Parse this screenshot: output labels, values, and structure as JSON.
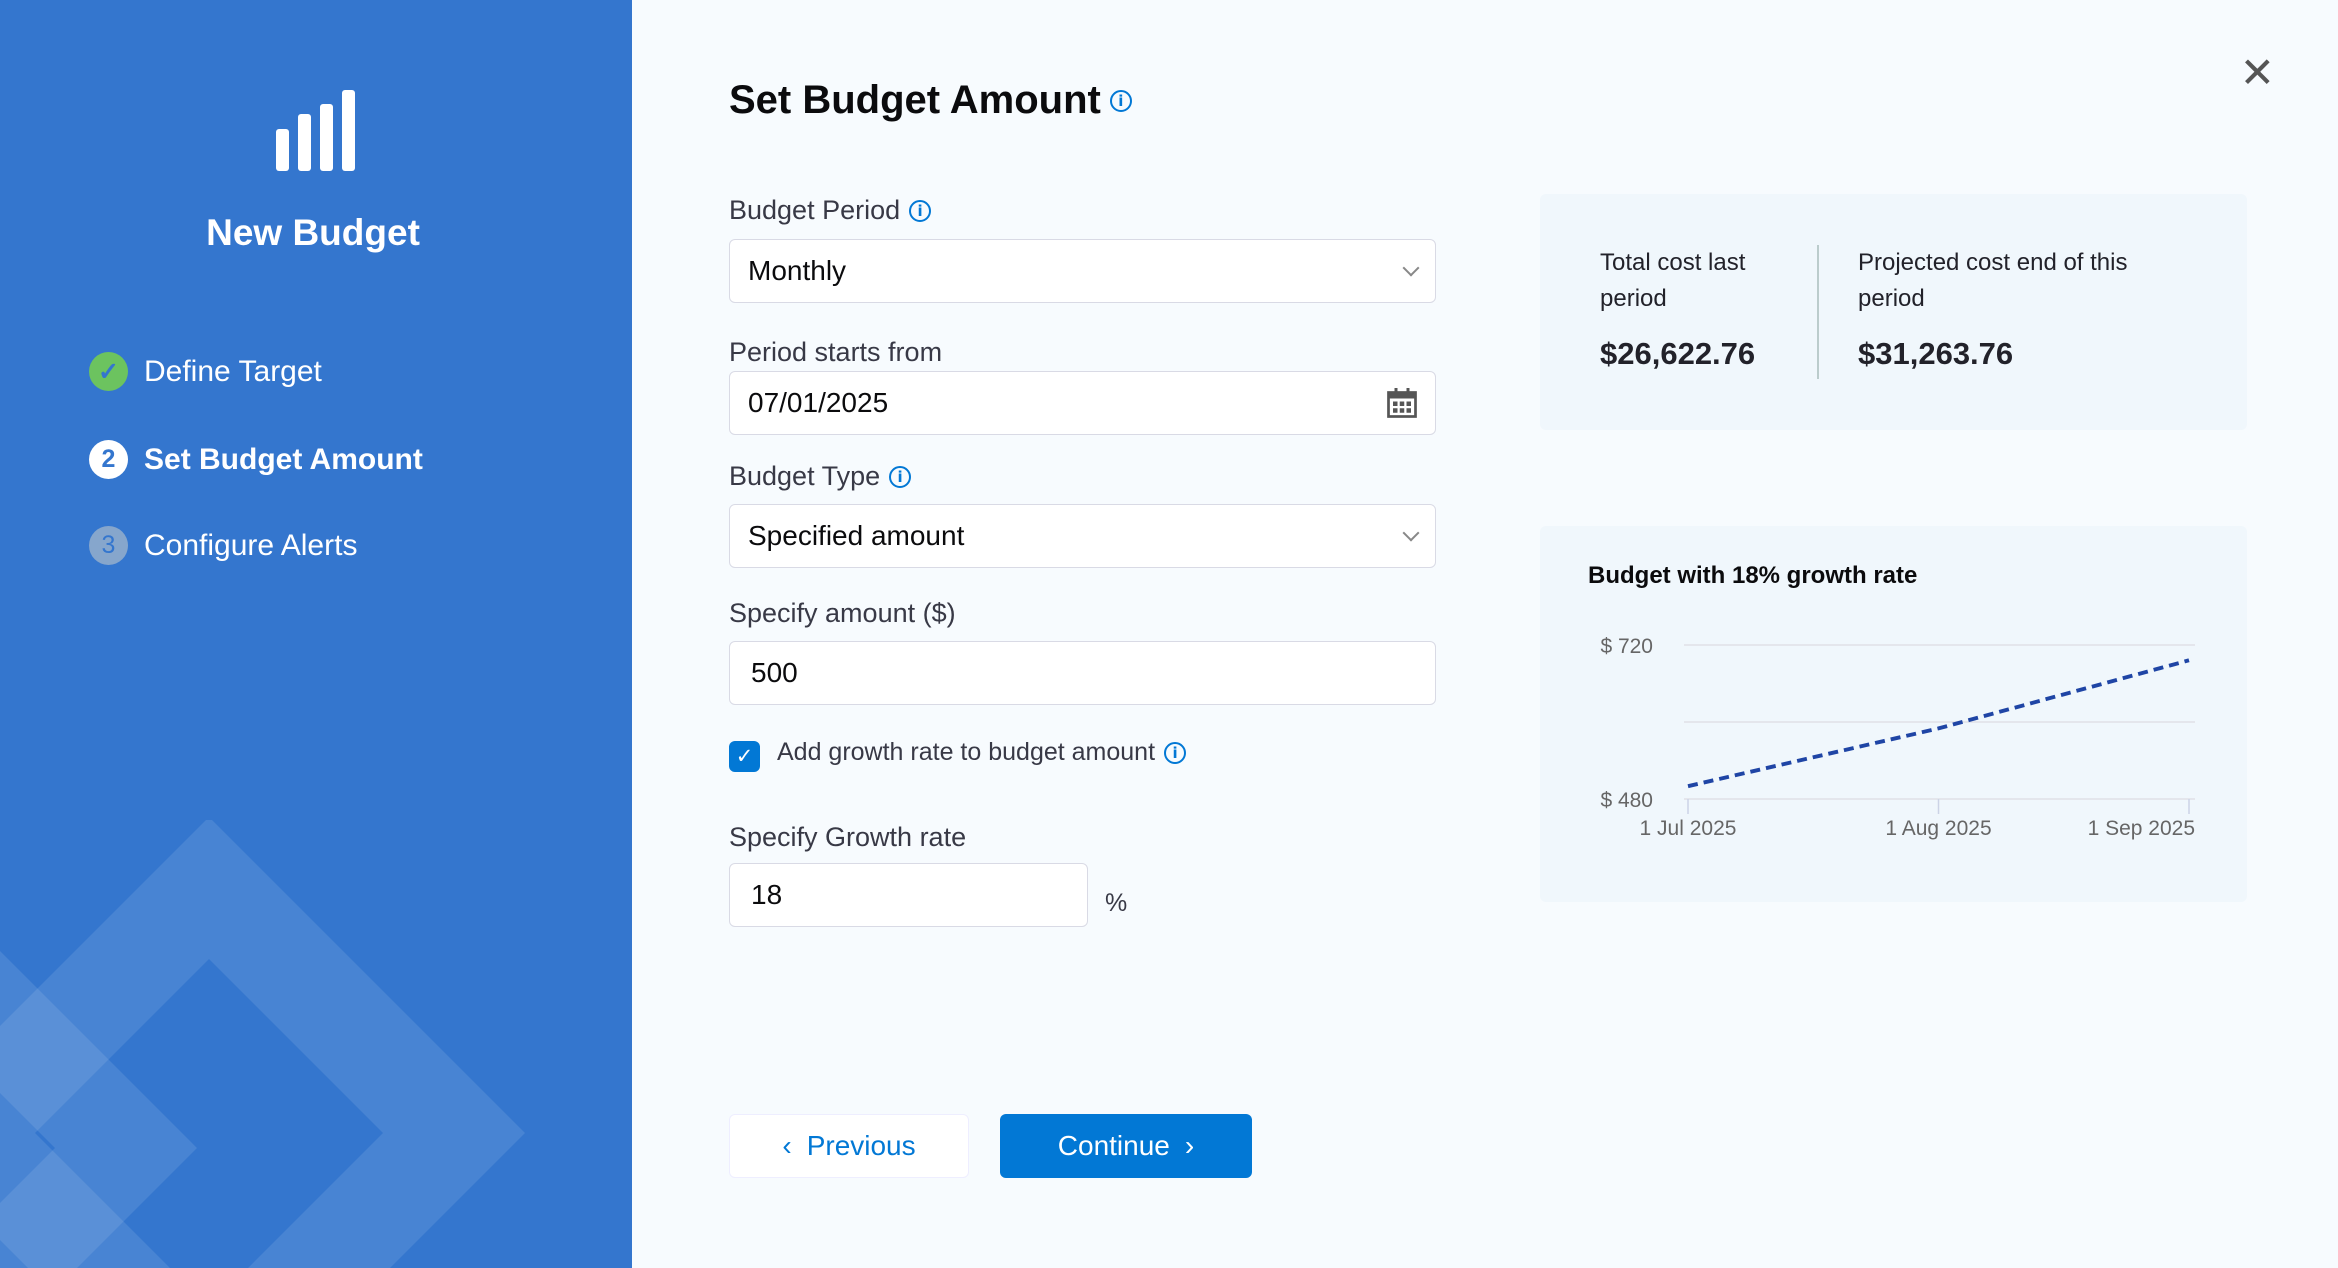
{
  "sidebar": {
    "title": "New Budget",
    "logo_icon": "bar-chart-icon",
    "steps": [
      {
        "label": "Define Target",
        "state": "completed",
        "marker": "✓"
      },
      {
        "label": "Set Budget Amount",
        "state": "active",
        "marker": "2"
      },
      {
        "label": "Configure Alerts",
        "state": "pending",
        "marker": "3"
      }
    ]
  },
  "main": {
    "title": "Set Budget Amount",
    "budget_period": {
      "label": "Budget Period",
      "value": "Monthly"
    },
    "period_start": {
      "label": "Period starts from",
      "value": "07/01/2025"
    },
    "budget_type": {
      "label": "Budget Type",
      "value": "Specified amount"
    },
    "amount": {
      "label": "Specify amount ($)",
      "value": "500"
    },
    "growth_checkbox": {
      "label": "Add growth rate to budget amount",
      "checked": true
    },
    "growth_rate": {
      "label": "Specify Growth rate",
      "value": "18",
      "unit": "%"
    },
    "previous_label": "Previous",
    "continue_label": "Continue"
  },
  "summary": {
    "last_label": "Total cost last period",
    "last_value": "$26,622.76",
    "projected_label": "Projected cost end of this period",
    "projected_value": "$31,263.76"
  },
  "colors": {
    "sidebar": "#3476ce",
    "accent": "#0278d5",
    "line": "#1f45a5",
    "success": "#6cc35f"
  },
  "chart_data": {
    "type": "line",
    "title": "Budget with 18% growth rate",
    "x": [
      "1 Jul 2025",
      "1 Aug 2025",
      "1 Sep 2025"
    ],
    "values": [
      500,
      590,
      696.2
    ],
    "ylim": [
      480,
      720
    ],
    "yticks": [
      "$ 720",
      "$ 480"
    ],
    "style": "dashed",
    "grid": true
  }
}
